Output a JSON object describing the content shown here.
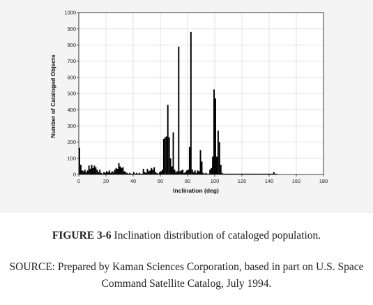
{
  "chart_data": {
    "type": "bar",
    "xlabel": "Inclination (deg)",
    "ylabel": "Number of Cataloged Objects",
    "xlim": [
      0,
      180
    ],
    "ylim": [
      0,
      1000
    ],
    "xticks": [
      "0",
      "20",
      "40",
      "60",
      "80",
      "100",
      "120",
      "140",
      "160",
      "180"
    ],
    "yticks": [
      "0",
      "100",
      "200",
      "300",
      "400",
      "500",
      "600",
      "700",
      "800",
      "900",
      "1000"
    ],
    "grid": true,
    "bin_width_deg": 1,
    "x": [
      0,
      1,
      2,
      3,
      4,
      5,
      6,
      7,
      8,
      9,
      10,
      11,
      12,
      13,
      14,
      15,
      16,
      17,
      18,
      19,
      20,
      21,
      22,
      23,
      24,
      25,
      26,
      27,
      28,
      29,
      30,
      31,
      32,
      33,
      34,
      35,
      36,
      37,
      38,
      39,
      40,
      41,
      42,
      43,
      44,
      45,
      46,
      47,
      48,
      49,
      50,
      51,
      52,
      53,
      54,
      55,
      56,
      57,
      58,
      59,
      60,
      61,
      62,
      63,
      64,
      65,
      66,
      67,
      68,
      69,
      70,
      71,
      72,
      73,
      74,
      75,
      76,
      77,
      78,
      79,
      80,
      81,
      82,
      83,
      84,
      85,
      86,
      87,
      88,
      89,
      90,
      91,
      92,
      93,
      94,
      95,
      96,
      97,
      98,
      99,
      100,
      101,
      102,
      103,
      104,
      105,
      106,
      107,
      108,
      109,
      110,
      111,
      112,
      113,
      114,
      115,
      116,
      117,
      118,
      119,
      120,
      121,
      122,
      123,
      124,
      125,
      126,
      127,
      128,
      129,
      130,
      131,
      132,
      133,
      134,
      135,
      136,
      137,
      138,
      139,
      140,
      141,
      142,
      143,
      144,
      145
    ],
    "values": [
      165,
      60,
      25,
      20,
      30,
      15,
      25,
      55,
      35,
      60,
      40,
      55,
      45,
      30,
      15,
      30,
      10,
      5,
      15,
      10,
      20,
      15,
      25,
      10,
      20,
      15,
      30,
      40,
      35,
      70,
      50,
      40,
      45,
      20,
      15,
      10,
      5,
      10,
      5,
      5,
      15,
      5,
      10,
      5,
      10,
      5,
      5,
      35,
      15,
      10,
      35,
      20,
      25,
      40,
      30,
      45,
      15,
      10,
      5,
      15,
      20,
      30,
      220,
      230,
      235,
      430,
      230,
      100,
      50,
      260,
      30,
      15,
      20,
      790,
      20,
      25,
      30,
      10,
      15,
      25,
      30,
      170,
      880,
      30,
      15,
      25,
      10,
      25,
      20,
      150,
      80,
      10,
      5,
      10,
      5,
      5,
      30,
      40,
      110,
      525,
      470,
      110,
      270,
      200,
      60,
      10,
      5,
      5,
      5,
      5,
      5,
      5,
      5,
      5,
      5,
      5,
      5,
      5,
      5,
      5,
      5,
      5,
      5,
      5,
      5,
      5,
      5,
      5,
      5,
      5,
      5,
      5,
      5,
      5,
      5,
      5,
      5,
      5,
      5,
      5,
      5,
      5,
      5,
      15,
      5,
      5
    ],
    "colors": {
      "bars": "#000000",
      "grid": "#d9d9d9",
      "axis": "#222222",
      "panel": "#f4f4f4"
    }
  },
  "caption": {
    "figure_label": "FIGURE 3-6",
    "text": " Inclination distribution of cataloged population."
  },
  "source": {
    "text": "SOURCE: Prepared by Kaman Sciences Corporation, based in part on U.S. Space Command Satellite Catalog, July 1994."
  }
}
